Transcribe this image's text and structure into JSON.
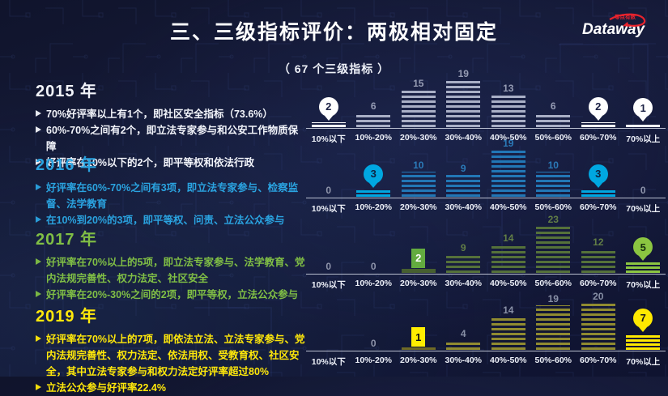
{
  "slide": {
    "title": "三、三级指标评价：两极相对固定",
    "subtitle": "（ 67 个三级指标 ）",
    "logo": {
      "brand": "Dataway",
      "tagline": "零点有数",
      "accent": "#e8232d"
    }
  },
  "sections": [
    {
      "year": "2015 年",
      "color": "#f2f4fa",
      "bullets": [
        "70%好评率以上有1个，即社区安全指标（73.6%）",
        "60%-70%之间有2个，即立法专家参与和公安工作物质保障",
        "好评率在10%以下的2个，即平等权和依法行政"
      ]
    },
    {
      "year": "2016 年",
      "color": "#2aa3e0",
      "bullets": [
        "好评率在60%-70%之间有3项，即立法专家参与、检察监督、法学教育",
        "在10%到20%的3项，即平等权、问责、立法公众参与"
      ]
    },
    {
      "year": "2017 年",
      "color": "#80bf45",
      "bullets": [
        "好评率在70%以上的5项，即立法专家参与、法学教育、党内法规完善性、权力法定、社区安全",
        "好评率在20%-30%之间的2项，即平等权，立法公众参与"
      ]
    },
    {
      "year": "2019 年",
      "color": "#ffe80a",
      "bullets": [
        "好评率在70%以上的7项，即依法立法、立法专家参与、党内法规完善性、权力法定、依法用权、受教育权、社区安全，其中立法专家参与和权力法定好评率超过80%",
        "立法公众参与好评率22.4%"
      ]
    }
  ],
  "chart_data": [
    {
      "type": "bar",
      "year": "2015",
      "categories": [
        "10%以下",
        "10%-20%",
        "20%-30%",
        "30%-40%",
        "40%-50%",
        "50%-60%",
        "60%-70%",
        "70%以上"
      ],
      "values": [
        2,
        6,
        15,
        19,
        13,
        6,
        2,
        1
      ],
      "value_labels": [
        "2",
        "6",
        "15",
        "19",
        "13",
        "6",
        "2",
        "1"
      ],
      "highlights": [
        {
          "index": 0,
          "style": "pin"
        },
        {
          "index": 6,
          "style": "pin"
        },
        {
          "index": 7,
          "style": "pin"
        }
      ],
      "accent": "#ffffff",
      "pin_text": "#1b2145",
      "stripe": "#a9afc6",
      "label_color": "#969cb4"
    },
    {
      "type": "bar",
      "year": "2016",
      "categories": [
        "10%以下",
        "10%-20%",
        "20%-30%",
        "30%-40%",
        "40%-50%",
        "50%-60%",
        "60%-70%",
        "70%以上"
      ],
      "values": [
        0,
        3,
        10,
        9,
        19,
        10,
        3,
        0
      ],
      "value_labels": [
        "0",
        "3",
        "10",
        "9",
        "19",
        "10",
        "3",
        "0"
      ],
      "highlights": [
        {
          "index": 1,
          "style": "pin"
        },
        {
          "index": 6,
          "style": "pin"
        }
      ],
      "accent": "#00a7e1",
      "pin_text": "#0e2240",
      "stripe": "#2277b6",
      "label_color": "#2b7ab8"
    },
    {
      "type": "bar",
      "year": "2017",
      "categories": [
        "10%以下",
        "10%-20%",
        "20%-30%",
        "30%-40%",
        "40%-50%",
        "50%-60%",
        "60%-70%",
        "70%以上"
      ],
      "values": [
        0,
        0,
        2,
        9,
        14,
        23,
        12,
        5
      ],
      "value_labels": [
        "0",
        "0",
        "2",
        "9",
        "14",
        "23",
        "12",
        "5"
      ],
      "highlights": [
        {
          "index": 2,
          "style": "badge"
        },
        {
          "index": 7,
          "style": "pin"
        }
      ],
      "accent": "#8bc541",
      "pin_text": "#17310f",
      "badge_bg": "#63ac3f",
      "badge_text": "#ffffff",
      "badge_bar": "#465f30",
      "stripe": "#55713a",
      "label_color": "#627e46"
    },
    {
      "type": "bar",
      "year": "2019",
      "categories": [
        "10%以下",
        "10%-20%",
        "20%-30%",
        "30%-40%",
        "40%-50%",
        "50%-60%",
        "60%-70%",
        "70%以上"
      ],
      "values": [
        0,
        0,
        1,
        4,
        14,
        19,
        20,
        7
      ],
      "value_labels": [
        "",
        "0",
        "1",
        "4",
        "14",
        "19",
        "20",
        "7"
      ],
      "highlights": [
        {
          "index": 2,
          "style": "badge"
        },
        {
          "index": 7,
          "style": "pin"
        }
      ],
      "accent": "#ffe800",
      "pin_text": "#1a1a1a",
      "badge_bg": "#ffee00",
      "badge_text": "#111111",
      "badge_bar": "#6f6a26",
      "stripe": "#908b30",
      "label_color": "#8890a6"
    }
  ]
}
